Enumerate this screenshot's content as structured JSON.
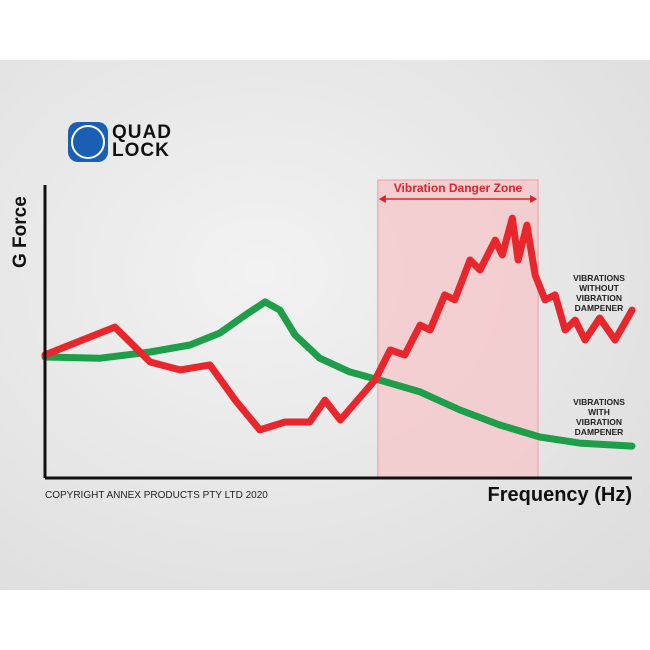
{
  "brand": {
    "name": "QUAD LOCK",
    "line1": "QUAD",
    "line2": "LOCK",
    "color": "#1a5fb4"
  },
  "chart_data": {
    "type": "line",
    "title": "",
    "xlabel": "Frequency (Hz)",
    "ylabel": "G Force",
    "xlim": [
      0,
      100
    ],
    "ylim": [
      0,
      100
    ],
    "grid": false,
    "copyright": "COPYRIGHT ANNEX PRODUCTS PTY LTD 2020",
    "zone": {
      "label": "Vibration Danger Zone",
      "x_range": [
        56.7,
        84
      ],
      "color": "#f7c6c8"
    },
    "series": [
      {
        "name": "VIBRATIONS WITHOUT VIBRATION DAMPENER",
        "label_lines": [
          "VIBRATIONS",
          "WITHOUT",
          "VIBRATION",
          "DAMPENER"
        ],
        "color": "#e8262b",
        "x": [
          0,
          8.5,
          11.9,
          17.9,
          23,
          28.1,
          32.4,
          36.6,
          40.9,
          45.1,
          47.7,
          50.3,
          56.2,
          58.8,
          61.3,
          63.9,
          65.6,
          68.1,
          69.8,
          72.4,
          74.1,
          76.7,
          77.9,
          79.6,
          80.6,
          82.1,
          83.5,
          85.2,
          86.9,
          88.6,
          90.3,
          92,
          94.5,
          97.1,
          100
        ],
        "y": [
          42,
          48.8,
          51.5,
          39.6,
          36.9,
          38.6,
          26.6,
          16.4,
          19.1,
          19.1,
          26.6,
          19.8,
          33.4,
          43.7,
          42,
          52.2,
          50.5,
          62.5,
          60.8,
          74.4,
          71,
          81.2,
          76.1,
          88.7,
          74.4,
          86.3,
          69.3,
          60.8,
          62.5,
          50.5,
          53.9,
          47.1,
          54.6,
          47.1,
          57.3
        ]
      },
      {
        "name": "VIBRATIONS WITH VIBRATION DAMPENER",
        "label_lines": [
          "VIBRATIONS",
          "WITH",
          "VIBRATION",
          "DAMPENER"
        ],
        "color": "#1e9e48",
        "x": [
          0,
          9.4,
          17.9,
          24.7,
          29.8,
          34.1,
          37.5,
          40,
          42.6,
          46.8,
          51.9,
          57,
          63.9,
          70.7,
          77.5,
          84.3,
          91.1,
          100
        ],
        "y": [
          41.3,
          40.9,
          43,
          45.4,
          49.5,
          55.6,
          60.1,
          57.3,
          48.8,
          40.9,
          36.2,
          33.4,
          29.4,
          23.2,
          18.1,
          14,
          11.9,
          10.9
        ]
      }
    ]
  }
}
